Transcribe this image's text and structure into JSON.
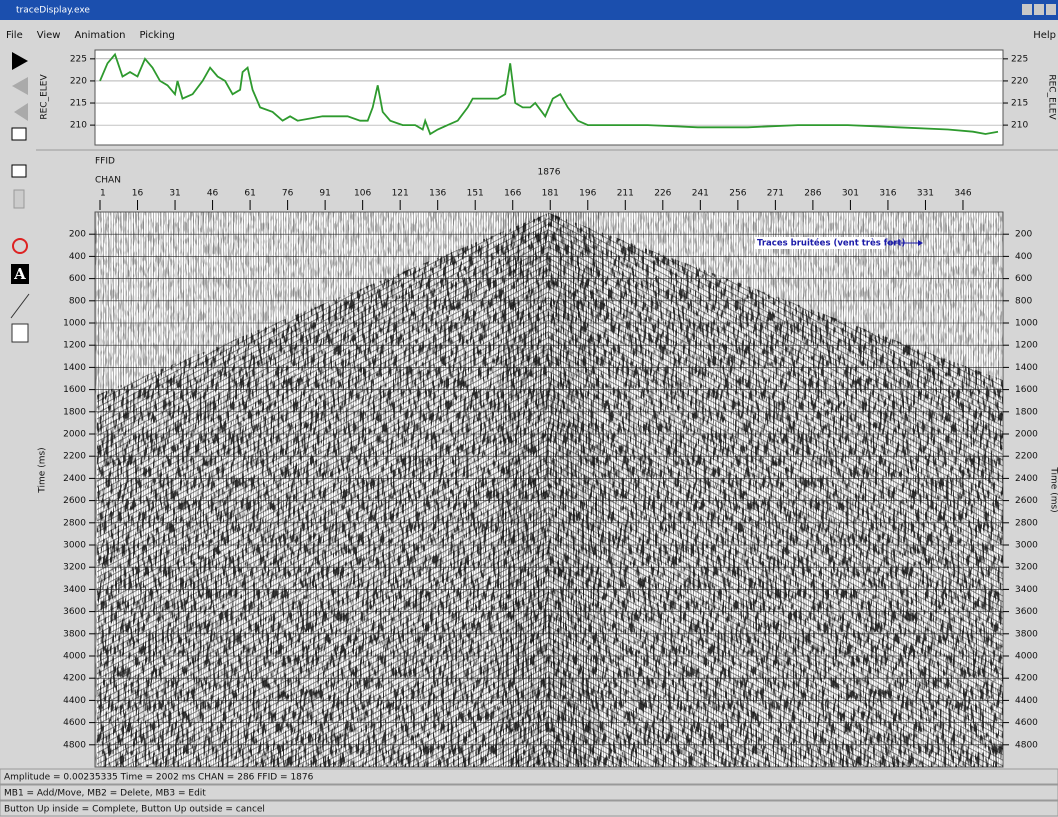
{
  "window": {
    "title": "traceDisplay.exe"
  },
  "menu": [
    "File",
    "View",
    "Animation",
    "Picking"
  ],
  "help": "Help",
  "elevation": {
    "label": "REC_ELEV",
    "color": "#2e9a2e",
    "xlim": [
      -1,
      362
    ],
    "ylim": [
      205.5,
      227
    ],
    "yticks": [
      210,
      215,
      220,
      225
    ],
    "x": [
      1,
      4,
      7,
      10,
      13,
      16,
      19,
      22,
      25,
      28,
      31,
      32,
      34,
      38,
      42,
      45,
      48,
      51,
      54,
      57,
      58,
      60,
      62,
      65,
      70,
      74,
      77,
      80,
      90,
      100,
      105,
      108,
      110,
      112,
      114,
      117,
      122,
      127,
      130,
      131,
      133,
      136,
      140,
      144,
      148,
      150,
      155,
      160,
      163,
      165,
      167,
      170,
      173,
      175,
      179,
      182,
      185,
      188,
      192,
      196,
      200,
      220,
      240,
      260,
      280,
      300,
      320,
      340,
      350,
      355,
      360
    ],
    "values": [
      220,
      224,
      226,
      221,
      222,
      221,
      225,
      223,
      220,
      219,
      217,
      220,
      216,
      217,
      220,
      223,
      221,
      220,
      217,
      218,
      222,
      223,
      218,
      214,
      213,
      211,
      212,
      211,
      212,
      212,
      211,
      211,
      214,
      219,
      213,
      211,
      210,
      210,
      209,
      211,
      208,
      209,
      210,
      211,
      214,
      216,
      216,
      216,
      217,
      224,
      215,
      214,
      214,
      215,
      212,
      216,
      217,
      214,
      211,
      210,
      210,
      210,
      209.5,
      209.5,
      210,
      210,
      209.5,
      209,
      208.5,
      208,
      208.5
    ]
  },
  "header": {
    "ffid_label": "FFID",
    "ffid": 1876,
    "chan_label": "CHAN",
    "chan_ticks": [
      1,
      16,
      31,
      46,
      61,
      76,
      91,
      106,
      121,
      136,
      151,
      166,
      181,
      196,
      211,
      226,
      241,
      256,
      271,
      286,
      301,
      316,
      331,
      346
    ]
  },
  "section": {
    "axis_label": "Time (ms)",
    "ylim": [
      0,
      5000
    ],
    "yticks": [
      200,
      400,
      600,
      800,
      1000,
      1200,
      1400,
      1600,
      1800,
      2000,
      2200,
      2400,
      2600,
      2800,
      3000,
      3200,
      3400,
      3600,
      3800,
      4000,
      4200,
      4400,
      4600,
      4800
    ],
    "annotation": "Traces bruitées (vent très fort)"
  },
  "status": [
    "Amplitude = 0.00235335  Time = 2002 ms  CHAN = 286  FFID = 1876",
    "MB1 = Add/Move, MB2 = Delete, MB3 = Edit",
    "Button Up inside = Complete, Button Up outside = cancel"
  ]
}
